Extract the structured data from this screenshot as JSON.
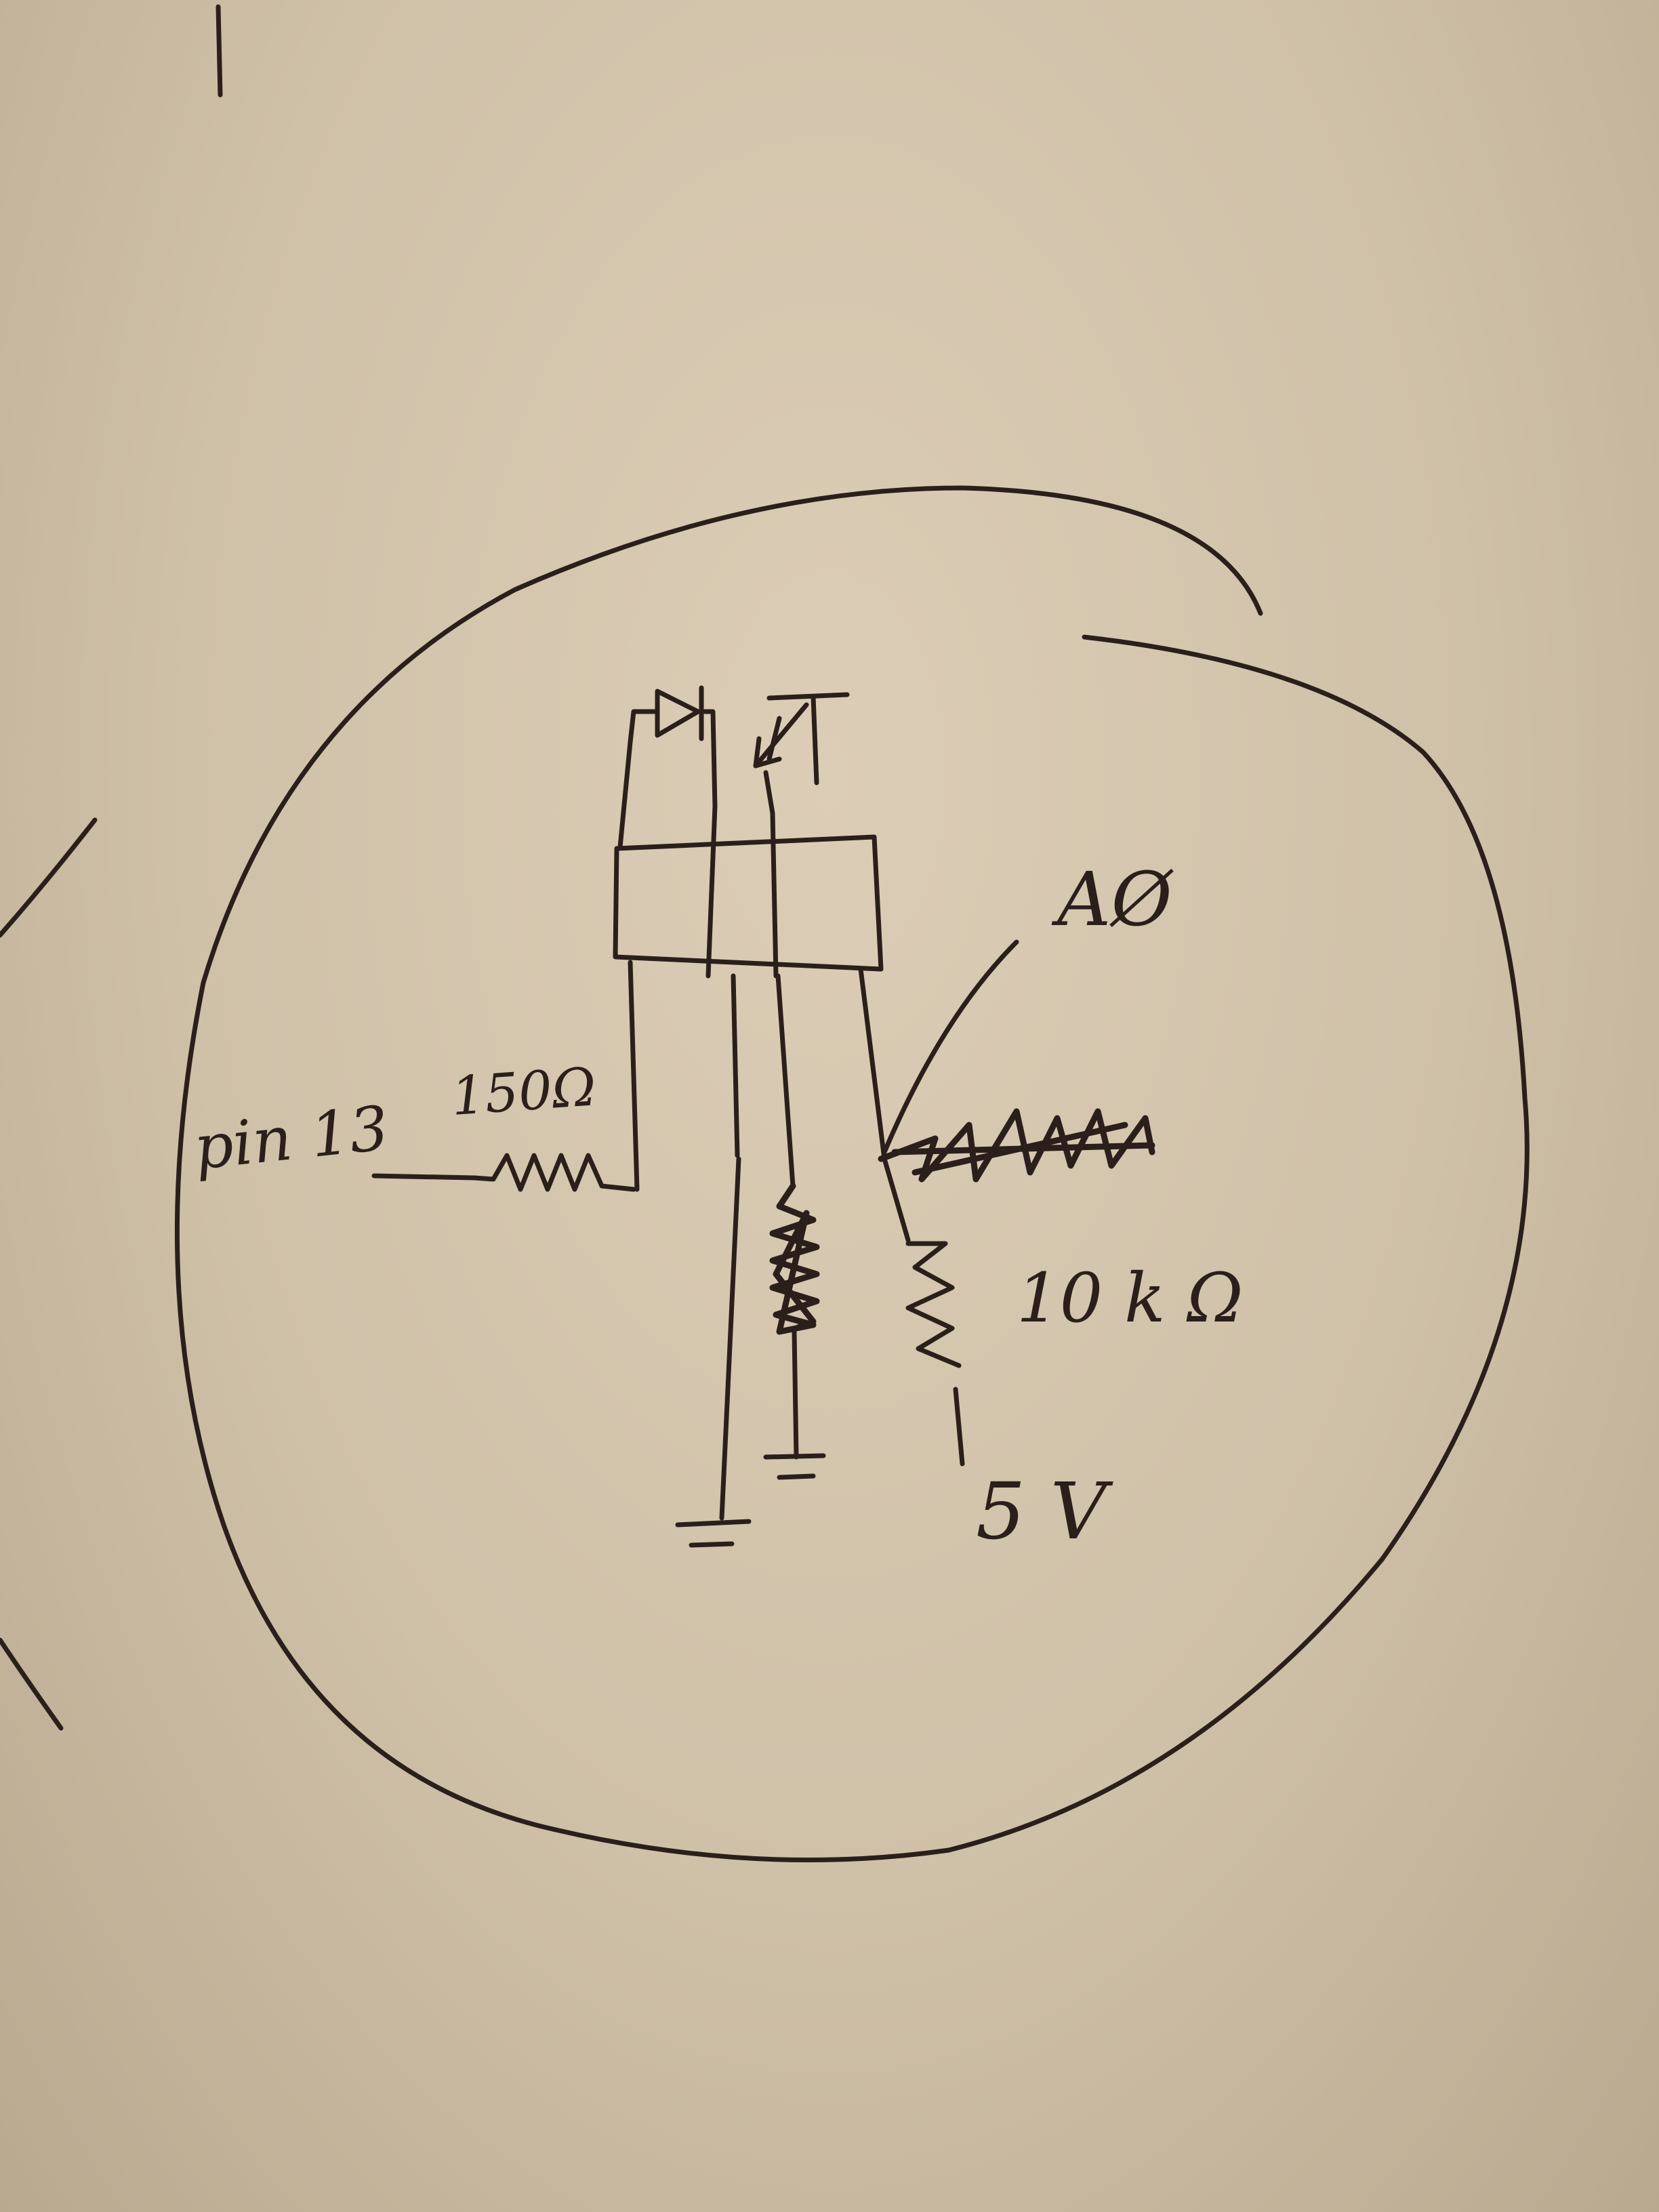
{
  "labels": {
    "pin": "pin 13",
    "r1": "150Ω",
    "analog": "AØ",
    "r2": "10 k Ω",
    "supply": "5 V"
  },
  "colors": {
    "ink": "#2b1f1c",
    "paper": "#d2c3ac"
  }
}
